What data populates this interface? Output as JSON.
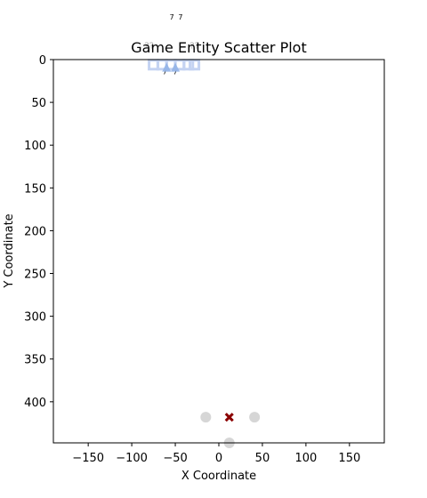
{
  "chart_data": {
    "type": "scatter",
    "title": "Game Entity Scatter Plot",
    "xlabel": "X Coordinate",
    "ylabel": "Y Coordinate",
    "xlim": [
      -190,
      190
    ],
    "ylim": [
      448,
      0
    ],
    "y_inverted": true,
    "grid": false,
    "legend": "none",
    "x_ticks": [
      -150,
      -100,
      -50,
      0,
      50,
      100,
      150
    ],
    "x_tick_labels": [
      "−150",
      "−100",
      "−50",
      "0",
      "50",
      "100",
      "150"
    ],
    "y_ticks": [
      0,
      50,
      100,
      150,
      200,
      250,
      300,
      350,
      400
    ],
    "y_tick_labels": [
      "0",
      "50",
      "100",
      "150",
      "200",
      "250",
      "300",
      "350",
      "400"
    ],
    "series": [
      {
        "marker": "square-outline",
        "color": "#c4d3f2",
        "points": [
          [
            -75,
            6
          ],
          [
            -65,
            6
          ],
          [
            -55,
            6
          ],
          [
            -45,
            6
          ],
          [
            -35,
            6
          ],
          [
            -28,
            6
          ]
        ]
      },
      {
        "marker": "triangle",
        "color": "#8fb0e6",
        "points": [
          [
            -60,
            10
          ],
          [
            -50,
            10
          ]
        ]
      },
      {
        "marker": "circle",
        "color": "#d6d6d6",
        "points": [
          [
            -15,
            418
          ],
          [
            41,
            418
          ],
          [
            12,
            448
          ]
        ]
      },
      {
        "marker": "x",
        "color": "#8b0000",
        "points": [
          [
            12,
            418
          ]
        ]
      }
    ],
    "annotations": [
      {
        "text": "7",
        "x": -54,
        "y": -47,
        "style": "tiny"
      },
      {
        "text": "7",
        "x": -44,
        "y": -47,
        "style": "tiny"
      },
      {
        "text": "7",
        "x": -62,
        "y": 17,
        "style": "tiny"
      },
      {
        "text": "7",
        "x": -50,
        "y": 17,
        "style": "tiny"
      },
      {
        "text": "??",
        "x": -80,
        "y": -13,
        "style": "faint"
      },
      {
        "text": "??",
        "x": -28,
        "y": -13,
        "style": "faint"
      }
    ]
  }
}
